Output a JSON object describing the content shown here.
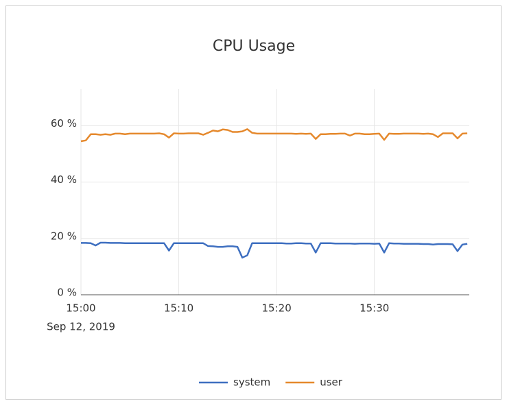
{
  "chart_data": {
    "type": "line",
    "title": "CPU Usage",
    "x_date": "Sep 12, 2019",
    "x": [
      0,
      0.5,
      1,
      1.5,
      2,
      2.5,
      3,
      3.5,
      4,
      4.5,
      5,
      5.5,
      6,
      6.5,
      7,
      7.5,
      8,
      8.5,
      9,
      9.5,
      10,
      10.5,
      11,
      11.5,
      12,
      12.5,
      13,
      13.5,
      14,
      14.5,
      15,
      15.5,
      16,
      16.5,
      17,
      17.5,
      18,
      18.5,
      19,
      19.5,
      20,
      20.5,
      21,
      21.5,
      22,
      22.5,
      23,
      23.5,
      24,
      24.5,
      25,
      25.5,
      26,
      26.5,
      27,
      27.5,
      28,
      28.5,
      29,
      29.5,
      30,
      30.5,
      31,
      31.5,
      32,
      32.5,
      33,
      33.5,
      34,
      34.5,
      35,
      35.5,
      36,
      36.5,
      37,
      37.5,
      38,
      38.5,
      39,
      39.5
    ],
    "series": [
      {
        "name": "system",
        "color": "#3e6fc0",
        "values": [
          18.4,
          18.4,
          18.3,
          17.5,
          18.5,
          18.5,
          18.4,
          18.4,
          18.4,
          18.3,
          18.3,
          18.3,
          18.3,
          18.3,
          18.3,
          18.3,
          18.3,
          18.3,
          15.7,
          18.3,
          18.3,
          18.3,
          18.3,
          18.3,
          18.3,
          18.3,
          17.3,
          17.2,
          17,
          17,
          17.2,
          17.2,
          17,
          13.2,
          14,
          18.3,
          18.3,
          18.3,
          18.3,
          18.3,
          18.3,
          18.3,
          18.2,
          18.2,
          18.3,
          18.3,
          18.2,
          18.2,
          15,
          18.3,
          18.3,
          18.3,
          18.2,
          18.2,
          18.2,
          18.2,
          18.1,
          18.2,
          18.2,
          18.2,
          18.1,
          18.2,
          15,
          18.3,
          18.2,
          18.2,
          18.1,
          18.1,
          18.1,
          18.1,
          18,
          18,
          17.8,
          18,
          18,
          18,
          17.9,
          15.5,
          17.8,
          18.1
        ]
      },
      {
        "name": "user",
        "color": "#e5892d",
        "values": [
          54.5,
          54.8,
          57,
          57,
          56.8,
          57,
          56.8,
          57.2,
          57.2,
          57,
          57.2,
          57.2,
          57.2,
          57.2,
          57.2,
          57.2,
          57.3,
          57,
          55.8,
          57.3,
          57.2,
          57.2,
          57.3,
          57.3,
          57.3,
          56.8,
          57.5,
          58.3,
          58,
          58.7,
          58.5,
          57.8,
          57.8,
          58,
          58.8,
          57.5,
          57.2,
          57.2,
          57.2,
          57.2,
          57.2,
          57.2,
          57.2,
          57.2,
          57.1,
          57.2,
          57.1,
          57.2,
          55.3,
          57,
          57,
          57.1,
          57.1,
          57.2,
          57.2,
          56.5,
          57.2,
          57.2,
          57,
          57,
          57.1,
          57.2,
          55,
          57.2,
          57.1,
          57.1,
          57.2,
          57.2,
          57.2,
          57.2,
          57.1,
          57.2,
          57,
          56,
          57.3,
          57.3,
          57.3,
          55.5,
          57.2,
          57.3
        ]
      }
    ],
    "xlim": [
      0,
      39.7
    ],
    "xticks": [
      {
        "value": 0,
        "label": "15:00"
      },
      {
        "value": 10,
        "label": "15:10"
      },
      {
        "value": 20,
        "label": "15:20"
      },
      {
        "value": 30,
        "label": "15:30"
      }
    ],
    "ylim": [
      0,
      73
    ],
    "yticks": [
      {
        "value": 0,
        "label": "0 %"
      },
      {
        "value": 20,
        "label": "20 %"
      },
      {
        "value": 40,
        "label": "40 %"
      },
      {
        "value": 60,
        "label": "60 %"
      }
    ],
    "grid": true,
    "legend": "bottom"
  }
}
